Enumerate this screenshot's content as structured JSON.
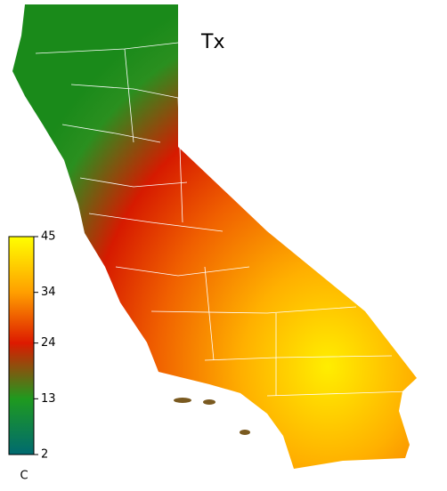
{
  "map": {
    "title": "Tx",
    "colorbar": {
      "lim": [
        2,
        45
      ],
      "ticks": [
        45,
        34,
        24,
        13,
        2
      ],
      "colors": [
        "#ffff00",
        "#ff9f00",
        "#dd1a00",
        "#1f9a1f",
        "#006a70"
      ],
      "unit": "C"
    }
  }
}
